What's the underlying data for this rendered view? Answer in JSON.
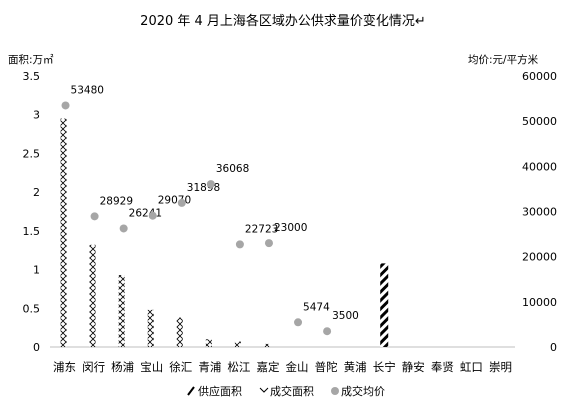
{
  "chart_data": {
    "type": "bar",
    "title": "2020 年 4 月上海各区域办公供求量价变化情况↵",
    "ylabel_left": "面积:万㎡",
    "ylabel_right": "均价:元/平方米",
    "categories": [
      "浦东",
      "闵行",
      "杨浦",
      "宝山",
      "徐汇",
      "青浦",
      "松江",
      "嘉定",
      "金山",
      "普陀",
      "黄浦",
      "长宁",
      "静安",
      "奉贤",
      "虹口",
      "崇明"
    ],
    "ylim_left": [
      0,
      3.5
    ],
    "ylim_right": [
      0,
      60000
    ],
    "yticks_left": [
      "0",
      "0.5",
      "1",
      "1.5",
      "2",
      "2.5",
      "3",
      "3.5"
    ],
    "yticks_right": [
      "0",
      "10000",
      "20000",
      "30000",
      "40000",
      "50000",
      "60000"
    ],
    "series": [
      {
        "name": "供应面积",
        "axis": "left",
        "kind": "bar",
        "pattern": "diagonal-hatch",
        "values": [
          0,
          0,
          0,
          0,
          0,
          0,
          0,
          0,
          0,
          0,
          0,
          1.08,
          0,
          0,
          0,
          0
        ]
      },
      {
        "name": "成交面积",
        "axis": "left",
        "kind": "bar",
        "pattern": "zigzag",
        "values": [
          2.95,
          1.32,
          0.93,
          0.48,
          0.38,
          0.1,
          0.07,
          0.04,
          0,
          0,
          0,
          0,
          0,
          0,
          0,
          0
        ]
      },
      {
        "name": "成交均价",
        "axis": "right",
        "kind": "scatter",
        "values": [
          53480,
          28929,
          26241,
          29070,
          31898,
          36068,
          22723,
          23000,
          5474,
          3500,
          null,
          null,
          null,
          null,
          null,
          null
        ],
        "labels": [
          "53480",
          "28929",
          "26241",
          "29070",
          "31898",
          "36068",
          "22723",
          "23000",
          "5474",
          "3500",
          "",
          "",
          "",
          "",
          "",
          ""
        ]
      }
    ],
    "legend_position": "bottom",
    "grid": false
  }
}
